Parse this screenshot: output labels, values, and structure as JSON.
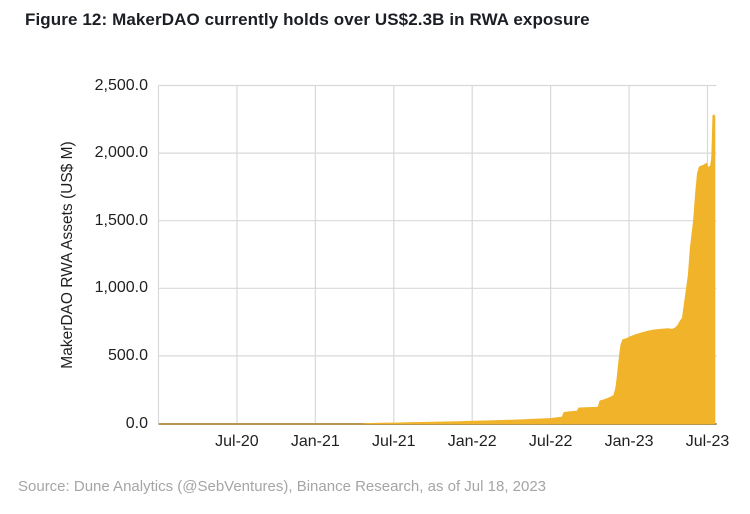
{
  "figure": {
    "title": "Figure 12: MakerDAO currently holds over US$2.3B in RWA exposure"
  },
  "source": {
    "text": "Source: Dune Analytics (@SebVentures), Binance Research, as of Jul 18, 2023"
  },
  "colors": {
    "area_fill": "#F0B32A",
    "gridline": "#D9D9D9",
    "axis_line": "#7A7A7A",
    "tick_text": "#1F1F1F",
    "title_text": "#1B1E24",
    "source_text": "#A5A5A5"
  },
  "chart_data": {
    "type": "area",
    "title": "Figure 12: MakerDAO currently holds over US$2.3B in RWA exposure",
    "xlabel": "",
    "ylabel": "MakerDAO RWA Assets (US$ M)",
    "x_unit": "months since Jan-2020",
    "xlim": [
      0,
      42.6
    ],
    "ylim": [
      0,
      2500
    ],
    "grid": true,
    "legend": "none",
    "y_ticks": [
      {
        "value": 0,
        "label": "0.0"
      },
      {
        "value": 500,
        "label": "500.0"
      },
      {
        "value": 1000,
        "label": "1,000.0"
      },
      {
        "value": 1500,
        "label": "1,500.0"
      },
      {
        "value": 2000,
        "label": "2,000.0"
      },
      {
        "value": 2500,
        "label": "2,500.0"
      }
    ],
    "x_ticks": [
      {
        "m": 0,
        "label": ""
      },
      {
        "m": 6,
        "label": "Jul-20"
      },
      {
        "m": 12,
        "label": "Jan-21"
      },
      {
        "m": 18,
        "label": "Jul-21"
      },
      {
        "m": 24,
        "label": "Jan-22"
      },
      {
        "m": 30,
        "label": "Jul-22"
      },
      {
        "m": 36,
        "label": "Jan-23"
      },
      {
        "m": 42,
        "label": "Jul-23"
      }
    ],
    "series": [
      {
        "name": "MakerDAO RWA Assets (US$ M)",
        "points": [
          [
            0,
            0
          ],
          [
            6,
            0
          ],
          [
            12,
            0
          ],
          [
            15.5,
            0
          ],
          [
            15.8,
            3
          ],
          [
            17,
            5
          ],
          [
            18,
            7
          ],
          [
            19,
            9
          ],
          [
            20,
            11
          ],
          [
            21,
            13
          ],
          [
            22,
            15
          ],
          [
            23,
            17
          ],
          [
            24,
            20
          ],
          [
            25,
            22
          ],
          [
            26,
            25
          ],
          [
            27,
            28
          ],
          [
            28,
            32
          ],
          [
            29,
            36
          ],
          [
            30,
            40
          ],
          [
            30.5,
            46
          ],
          [
            30.85,
            50
          ],
          [
            31.0,
            85
          ],
          [
            31.5,
            90
          ],
          [
            32.0,
            95
          ],
          [
            32.15,
            118
          ],
          [
            32.7,
            120
          ],
          [
            33.6,
            123
          ],
          [
            33.75,
            170
          ],
          [
            34.1,
            180
          ],
          [
            34.5,
            195
          ],
          [
            34.8,
            210
          ],
          [
            34.95,
            260
          ],
          [
            35.05,
            340
          ],
          [
            35.15,
            430
          ],
          [
            35.25,
            520
          ],
          [
            35.35,
            585
          ],
          [
            35.5,
            622
          ],
          [
            35.8,
            632
          ],
          [
            36.0,
            641
          ],
          [
            36.5,
            660
          ],
          [
            37.0,
            675
          ],
          [
            37.5,
            688
          ],
          [
            38.0,
            696
          ],
          [
            38.5,
            701
          ],
          [
            39.0,
            704
          ],
          [
            39.3,
            700
          ],
          [
            39.55,
            712
          ],
          [
            39.7,
            728
          ],
          [
            39.9,
            762
          ],
          [
            40.05,
            782
          ],
          [
            40.3,
            960
          ],
          [
            40.5,
            1100
          ],
          [
            40.65,
            1300
          ],
          [
            40.9,
            1500
          ],
          [
            41.05,
            1700
          ],
          [
            41.2,
            1850
          ],
          [
            41.35,
            1900
          ],
          [
            41.7,
            1915
          ],
          [
            41.95,
            1930
          ],
          [
            42.05,
            1898
          ],
          [
            42.2,
            1905
          ],
          [
            42.28,
            1960
          ],
          [
            42.33,
            2100
          ],
          [
            42.38,
            2280
          ],
          [
            42.5,
            2288
          ],
          [
            42.6,
            2272
          ]
        ]
      }
    ],
    "annotations": []
  }
}
